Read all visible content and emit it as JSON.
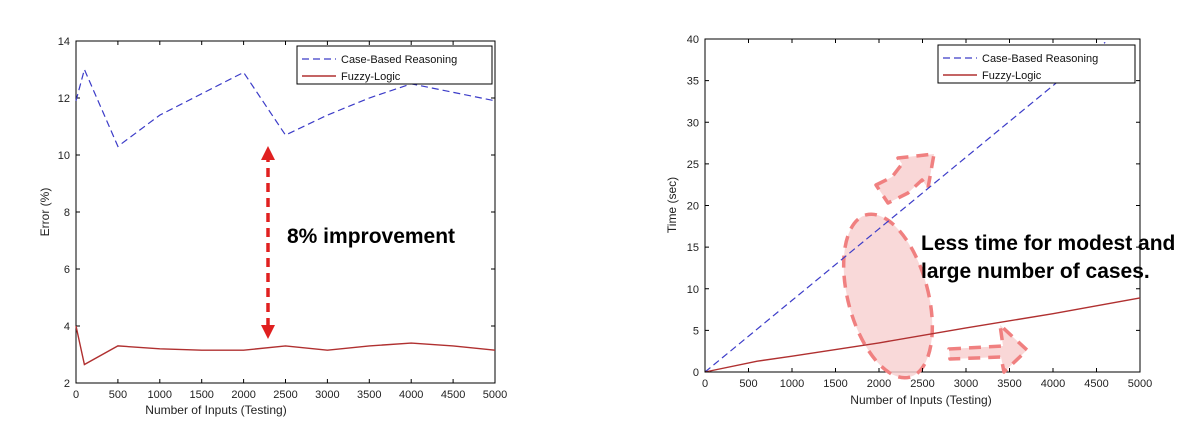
{
  "chart_data": [
    {
      "type": "line",
      "title": "",
      "xlabel": "Number of Inputs (Testing)",
      "ylabel": "Error (%)",
      "xlim": [
        0,
        5000
      ],
      "ylim": [
        2,
        14
      ],
      "xticks": [
        0,
        500,
        1000,
        1500,
        2000,
        2500,
        3000,
        3500,
        4000,
        4500,
        5000
      ],
      "yticks": [
        2,
        4,
        6,
        8,
        10,
        12,
        14
      ],
      "grid": false,
      "legend_position": "top-right",
      "series": [
        {
          "name": "Case-Based Reasoning",
          "color": "#3c3cc8",
          "style": "dashed",
          "x": [
            0,
            100,
            500,
            1000,
            2000,
            2500,
            3000,
            3500,
            4000,
            5000
          ],
          "y": [
            11.9,
            13.0,
            10.3,
            11.4,
            12.9,
            10.7,
            11.4,
            12.0,
            12.5,
            11.9
          ]
        },
        {
          "name": "Fuzzy-Logic",
          "color": "#b03030",
          "style": "solid",
          "x": [
            0,
            100,
            500,
            1000,
            1500,
            2000,
            2500,
            3000,
            3500,
            4000,
            4500,
            5000
          ],
          "y": [
            4.0,
            2.65,
            3.3,
            3.2,
            3.15,
            3.15,
            3.3,
            3.15,
            3.3,
            3.4,
            3.3,
            3.15
          ]
        }
      ],
      "annotations": [
        {
          "text": "8% improvement",
          "x": 2500,
          "y": 7.5
        }
      ]
    },
    {
      "type": "line",
      "title": "",
      "xlabel": "Number of Inputs (Testing)",
      "ylabel": "Time (sec)",
      "xlim": [
        0,
        5000
      ],
      "ylim": [
        0,
        40
      ],
      "xticks": [
        0,
        500,
        1000,
        1500,
        2000,
        2500,
        3000,
        3500,
        4000,
        4500,
        5000
      ],
      "yticks": [
        0,
        5,
        10,
        15,
        20,
        25,
        30,
        35,
        40
      ],
      "grid": false,
      "legend_position": "top-right",
      "series": [
        {
          "name": "Case-Based Reasoning",
          "color": "#3c3cc8",
          "style": "dashed",
          "x": [
            0,
            1000,
            2000,
            3000,
            4000,
            4600
          ],
          "y": [
            0,
            8.6,
            17.2,
            25.8,
            34.4,
            39.6
          ]
        },
        {
          "name": "Fuzzy-Logic",
          "color": "#b03030",
          "style": "solid",
          "x": [
            0,
            600,
            1000,
            2000,
            3000,
            4000,
            5000
          ],
          "y": [
            0,
            1.3,
            1.9,
            3.5,
            5.3,
            7.0,
            8.9
          ]
        }
      ],
      "annotations": [
        {
          "text": "Less time for modest and",
          "x": 2500,
          "y": 15
        },
        {
          "text": "large number of cases.",
          "x": 2500,
          "y": 12
        }
      ]
    }
  ]
}
